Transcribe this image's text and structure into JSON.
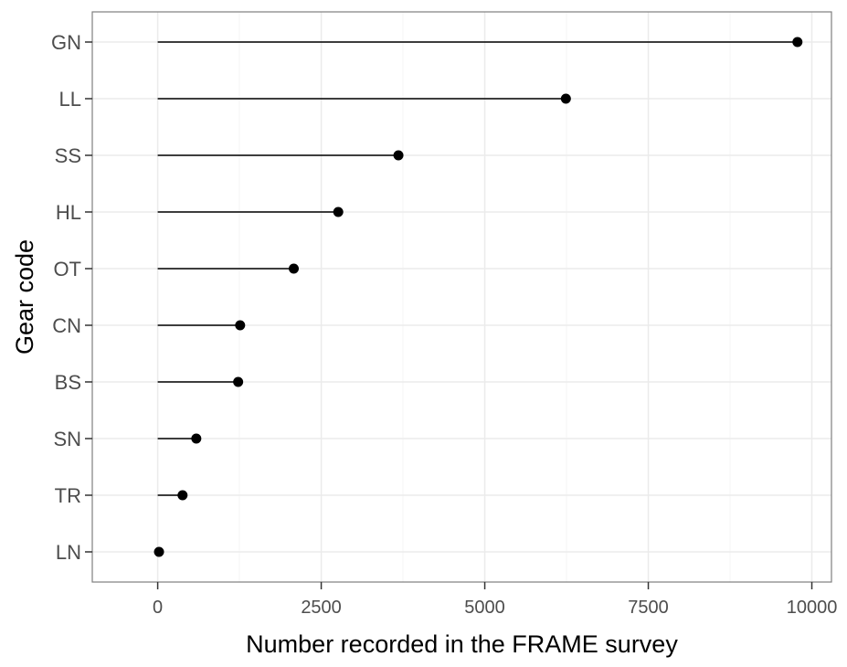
{
  "chart_data": {
    "type": "lollipop",
    "orientation": "horizontal",
    "title": "",
    "xlabel": "Number recorded in the FRAME survey",
    "ylabel": "Gear code",
    "categories": [
      "GN",
      "LL",
      "SS",
      "HL",
      "OT",
      "CN",
      "BS",
      "SN",
      "TR",
      "LN"
    ],
    "values": [
      9780,
      6240,
      3680,
      2760,
      2080,
      1260,
      1230,
      590,
      380,
      20
    ],
    "xlim": [
      -1000,
      10300
    ],
    "xticks": [
      0,
      2500,
      5000,
      7500,
      10000
    ],
    "xtick_labels": [
      "0",
      "2500",
      "5000",
      "7500",
      "10000"
    ],
    "grid": true,
    "legend": "none",
    "colors": {
      "marker": "#000000",
      "stem": "#000000",
      "grid_major": "#ebebeb",
      "grid_minor": "#f5f5f5",
      "panel_border": "#7f7f7f",
      "tick_label": "#4d4d4d",
      "axis_title": "#000000"
    }
  }
}
